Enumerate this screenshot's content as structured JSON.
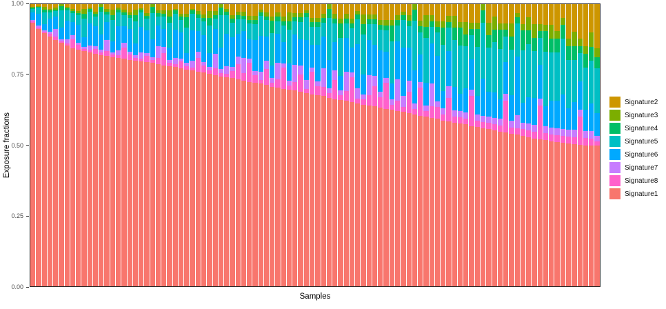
{
  "chart_data": {
    "type": "bar",
    "stacked": true,
    "title": "",
    "xlabel": "Samples",
    "ylabel": "Exposure fractions",
    "ylim": [
      0,
      1
    ],
    "grid": false,
    "x_tick_labels_shown": false,
    "yticks": [
      {
        "label": "0.00",
        "value": 0.0
      },
      {
        "label": "0.25",
        "value": 0.25
      },
      {
        "label": "0.50",
        "value": 0.5
      },
      {
        "label": "0.75",
        "value": 0.75
      },
      {
        "label": "1.00",
        "value": 1.0
      }
    ],
    "legend": {
      "position": "right",
      "entries": [
        {
          "label": "Signature2",
          "color": "#CD9600"
        },
        {
          "label": "Signature3",
          "color": "#7CAE00"
        },
        {
          "label": "Signature4",
          "color": "#00BE67"
        },
        {
          "label": "Signature5",
          "color": "#00BFC4"
        },
        {
          "label": "Signature6",
          "color": "#00A9FF"
        },
        {
          "label": "Signature7",
          "color": "#C77CFF"
        },
        {
          "label": "Signature8",
          "color": "#FF61CC"
        },
        {
          "label": "Signature1",
          "color": "#F8766D"
        }
      ]
    },
    "series_colors": {
      "Signature1": "#F8766D",
      "Signature2": "#CD9600",
      "Signature3": "#7CAE00",
      "Signature4": "#00BE67",
      "Signature5": "#00BFC4",
      "Signature6": "#00A9FF",
      "Signature7": "#C77CFF",
      "Signature8": "#FF61CC"
    },
    "stack_order_bottom_to_top": [
      "Signature1",
      "Signature8",
      "Signature7",
      "Signature6",
      "Signature5",
      "Signature4",
      "Signature3",
      "Signature2"
    ],
    "samples_sorted_by": "Signature1 fraction, descending (0.93 to 0.50)",
    "samples": [
      [
        0.932,
        0.007,
        0.003,
        0.027,
        0.014,
        0.003,
        0.003,
        0.01
      ],
      [
        0.912,
        0.004,
        0.009,
        0.04,
        0.022,
        0.004,
        0.003,
        0.006
      ],
      [
        0.896,
        0.005,
        0.005,
        0.021,
        0.042,
        0.01,
        0.01,
        0.01
      ],
      [
        0.884,
        0.012,
        0.006,
        0.046,
        0.023,
        0.006,
        0.006,
        0.017
      ],
      [
        0.872,
        0.013,
        0.026,
        0.045,
        0.019,
        0.006,
        0.006,
        0.013
      ],
      [
        0.862,
        0.007,
        0.007,
        0.041,
        0.062,
        0.014,
        0.007,
        0.0
      ],
      [
        0.853,
        0.007,
        0.015,
        0.066,
        0.037,
        0.007,
        0.004,
        0.01
      ],
      [
        0.845,
        0.031,
        0.016,
        0.047,
        0.031,
        0.008,
        0.008,
        0.016
      ],
      [
        0.838,
        0.016,
        0.008,
        0.065,
        0.032,
        0.008,
        0.008,
        0.024
      ],
      [
        0.833,
        0.008,
        0.008,
        0.033,
        0.067,
        0.017,
        0.017,
        0.017
      ],
      [
        0.828,
        0.009,
        0.017,
        0.077,
        0.043,
        0.009,
        0.005,
        0.012
      ],
      [
        0.824,
        0.018,
        0.009,
        0.07,
        0.035,
        0.009,
        0.009,
        0.026
      ],
      [
        0.82,
        0.009,
        0.009,
        0.054,
        0.081,
        0.018,
        0.009,
        0.0
      ],
      [
        0.816,
        0.018,
        0.037,
        0.064,
        0.028,
        0.009,
        0.009,
        0.018
      ],
      [
        0.812,
        0.009,
        0.009,
        0.038,
        0.075,
        0.019,
        0.019,
        0.019
      ],
      [
        0.809,
        0.01,
        0.019,
        0.086,
        0.048,
        0.01,
        0.006,
        0.013
      ],
      [
        0.806,
        0.039,
        0.019,
        0.058,
        0.039,
        0.01,
        0.01,
        0.019
      ],
      [
        0.803,
        0.02,
        0.01,
        0.079,
        0.039,
        0.01,
        0.01,
        0.03
      ],
      [
        0.8,
        0.01,
        0.01,
        0.04,
        0.08,
        0.02,
        0.02,
        0.02
      ],
      [
        0.797,
        0.01,
        0.02,
        0.091,
        0.051,
        0.01,
        0.006,
        0.014
      ],
      [
        0.794,
        0.021,
        0.01,
        0.082,
        0.041,
        0.01,
        0.01,
        0.031
      ],
      [
        0.791,
        0.01,
        0.01,
        0.063,
        0.094,
        0.021,
        0.01,
        0.0
      ],
      [
        0.788,
        0.021,
        0.042,
        0.074,
        0.032,
        0.011,
        0.011,
        0.021
      ],
      [
        0.785,
        0.043,
        0.022,
        0.065,
        0.043,
        0.011,
        0.011,
        0.022
      ],
      [
        0.781,
        0.011,
        0.011,
        0.044,
        0.088,
        0.022,
        0.022,
        0.022
      ],
      [
        0.777,
        0.011,
        0.022,
        0.1,
        0.056,
        0.011,
        0.007,
        0.016
      ],
      [
        0.773,
        0.023,
        0.011,
        0.091,
        0.045,
        0.011,
        0.011,
        0.034
      ],
      [
        0.769,
        0.012,
        0.012,
        0.035,
        0.092,
        0.035,
        0.012,
        0.035
      ],
      [
        0.765,
        0.012,
        0.024,
        0.106,
        0.059,
        0.012,
        0.007,
        0.016
      ],
      [
        0.761,
        0.048,
        0.024,
        0.072,
        0.048,
        0.012,
        0.012,
        0.024
      ],
      [
        0.757,
        0.024,
        0.012,
        0.097,
        0.049,
        0.012,
        0.012,
        0.036
      ],
      [
        0.753,
        0.012,
        0.012,
        0.049,
        0.099,
        0.025,
        0.025,
        0.025
      ],
      [
        0.749,
        0.025,
        0.05,
        0.088,
        0.038,
        0.013,
        0.013,
        0.025
      ],
      [
        0.745,
        0.013,
        0.013,
        0.077,
        0.115,
        0.026,
        0.013,
        0.0
      ],
      [
        0.741,
        0.013,
        0.026,
        0.117,
        0.065,
        0.013,
        0.008,
        0.018
      ],
      [
        0.737,
        0.026,
        0.013,
        0.105,
        0.053,
        0.013,
        0.013,
        0.039
      ],
      [
        0.733,
        0.053,
        0.027,
        0.08,
        0.053,
        0.013,
        0.013,
        0.027
      ],
      [
        0.729,
        0.027,
        0.054,
        0.095,
        0.041,
        0.014,
        0.014,
        0.027
      ],
      [
        0.725,
        0.069,
        0.014,
        0.069,
        0.055,
        0.014,
        0.014,
        0.041
      ],
      [
        0.721,
        0.028,
        0.014,
        0.112,
        0.056,
        0.014,
        0.014,
        0.042
      ],
      [
        0.717,
        0.014,
        0.028,
        0.127,
        0.071,
        0.014,
        0.008,
        0.02
      ],
      [
        0.713,
        0.057,
        0.029,
        0.086,
        0.057,
        0.014,
        0.014,
        0.029
      ],
      [
        0.709,
        0.015,
        0.015,
        0.044,
        0.116,
        0.044,
        0.015,
        0.044
      ],
      [
        0.705,
        0.03,
        0.059,
        0.103,
        0.044,
        0.015,
        0.015,
        0.03
      ],
      [
        0.701,
        0.075,
        0.015,
        0.075,
        0.06,
        0.015,
        0.015,
        0.045
      ],
      [
        0.697,
        0.015,
        0.015,
        0.061,
        0.121,
        0.03,
        0.03,
        0.03
      ],
      [
        0.693,
        0.031,
        0.061,
        0.107,
        0.046,
        0.015,
        0.015,
        0.031
      ],
      [
        0.689,
        0.062,
        0.031,
        0.093,
        0.062,
        0.016,
        0.016,
        0.031
      ],
      [
        0.685,
        0.016,
        0.032,
        0.142,
        0.079,
        0.016,
        0.009,
        0.022
      ],
      [
        0.681,
        0.08,
        0.016,
        0.08,
        0.064,
        0.016,
        0.016,
        0.048
      ],
      [
        0.677,
        0.032,
        0.016,
        0.129,
        0.065,
        0.016,
        0.016,
        0.048
      ],
      [
        0.673,
        0.033,
        0.065,
        0.114,
        0.049,
        0.016,
        0.016,
        0.033
      ],
      [
        0.669,
        0.017,
        0.017,
        0.099,
        0.149,
        0.033,
        0.017,
        0.0
      ],
      [
        0.665,
        0.067,
        0.034,
        0.101,
        0.067,
        0.017,
        0.017,
        0.034
      ],
      [
        0.661,
        0.017,
        0.017,
        0.051,
        0.136,
        0.051,
        0.017,
        0.051
      ],
      [
        0.657,
        0.034,
        0.069,
        0.12,
        0.051,
        0.017,
        0.017,
        0.034
      ],
      [
        0.653,
        0.087,
        0.017,
        0.087,
        0.069,
        0.017,
        0.017,
        0.052
      ],
      [
        0.649,
        0.018,
        0.035,
        0.158,
        0.088,
        0.018,
        0.011,
        0.025
      ],
      [
        0.645,
        0.018,
        0.018,
        0.071,
        0.142,
        0.036,
        0.036,
        0.036
      ],
      [
        0.641,
        0.036,
        0.072,
        0.126,
        0.054,
        0.018,
        0.018,
        0.036
      ],
      [
        0.637,
        0.073,
        0.036,
        0.109,
        0.073,
        0.018,
        0.018,
        0.036
      ],
      [
        0.633,
        0.037,
        0.018,
        0.147,
        0.073,
        0.018,
        0.018,
        0.055
      ],
      [
        0.629,
        0.093,
        0.019,
        0.093,
        0.074,
        0.019,
        0.019,
        0.056
      ],
      [
        0.625,
        0.019,
        0.019,
        0.056,
        0.15,
        0.056,
        0.019,
        0.056
      ],
      [
        0.621,
        0.038,
        0.076,
        0.133,
        0.057,
        0.019,
        0.019,
        0.038
      ],
      [
        0.617,
        0.019,
        0.038,
        0.172,
        0.096,
        0.019,
        0.011,
        0.027
      ],
      [
        0.613,
        0.077,
        0.039,
        0.116,
        0.077,
        0.019,
        0.019,
        0.039
      ],
      [
        0.609,
        0.02,
        0.02,
        0.117,
        0.176,
        0.039,
        0.02,
        0.0
      ],
      [
        0.605,
        0.099,
        0.02,
        0.099,
        0.079,
        0.02,
        0.02,
        0.059
      ],
      [
        0.601,
        0.02,
        0.02,
        0.08,
        0.16,
        0.04,
        0.04,
        0.04
      ],
      [
        0.597,
        0.04,
        0.081,
        0.141,
        0.06,
        0.02,
        0.02,
        0.04
      ],
      [
        0.593,
        0.041,
        0.02,
        0.163,
        0.081,
        0.02,
        0.02,
        0.061
      ],
      [
        0.589,
        0.021,
        0.021,
        0.062,
        0.164,
        0.062,
        0.021,
        0.062
      ],
      [
        0.585,
        0.083,
        0.042,
        0.125,
        0.083,
        0.021,
        0.021,
        0.042
      ],
      [
        0.581,
        0.021,
        0.021,
        0.084,
        0.168,
        0.042,
        0.042,
        0.042
      ],
      [
        0.577,
        0.021,
        0.021,
        0.063,
        0.169,
        0.063,
        0.021,
        0.063
      ],
      [
        0.573,
        0.021,
        0.021,
        0.085,
        0.149,
        0.043,
        0.043,
        0.064
      ],
      [
        0.569,
        0.108,
        0.022,
        0.108,
        0.086,
        0.022,
        0.022,
        0.065
      ],
      [
        0.565,
        0.022,
        0.022,
        0.065,
        0.174,
        0.065,
        0.022,
        0.065
      ],
      [
        0.561,
        0.022,
        0.022,
        0.132,
        0.198,
        0.044,
        0.022,
        0.0
      ],
      [
        0.557,
        0.022,
        0.022,
        0.089,
        0.155,
        0.044,
        0.044,
        0.066
      ],
      [
        0.553,
        0.022,
        0.022,
        0.089,
        0.179,
        0.045,
        0.045,
        0.045
      ],
      [
        0.549,
        0.023,
        0.023,
        0.068,
        0.18,
        0.068,
        0.023,
        0.068
      ],
      [
        0.545,
        0.114,
        0.023,
        0.114,
        0.091,
        0.023,
        0.023,
        0.068
      ],
      [
        0.541,
        0.023,
        0.023,
        0.092,
        0.161,
        0.046,
        0.046,
        0.069
      ],
      [
        0.537,
        0.023,
        0.046,
        0.208,
        0.116,
        0.023,
        0.014,
        0.032
      ],
      [
        0.533,
        0.023,
        0.023,
        0.07,
        0.187,
        0.07,
        0.023,
        0.07
      ],
      [
        0.529,
        0.024,
        0.024,
        0.094,
        0.188,
        0.047,
        0.047,
        0.047
      ],
      [
        0.525,
        0.024,
        0.024,
        0.095,
        0.166,
        0.048,
        0.048,
        0.071
      ],
      [
        0.521,
        0.12,
        0.024,
        0.12,
        0.096,
        0.024,
        0.024,
        0.072
      ],
      [
        0.517,
        0.024,
        0.024,
        0.072,
        0.193,
        0.072,
        0.024,
        0.072
      ],
      [
        0.513,
        0.024,
        0.024,
        0.097,
        0.17,
        0.049,
        0.049,
        0.073
      ],
      [
        0.51,
        0.025,
        0.025,
        0.098,
        0.172,
        0.049,
        0.025,
        0.096
      ],
      [
        0.508,
        0.025,
        0.025,
        0.123,
        0.197,
        0.049,
        0.025,
        0.048
      ],
      [
        0.506,
        0.025,
        0.025,
        0.074,
        0.173,
        0.049,
        0.025,
        0.123
      ],
      [
        0.504,
        0.025,
        0.025,
        0.099,
        0.149,
        0.05,
        0.05,
        0.098
      ],
      [
        0.502,
        0.1,
        0.025,
        0.1,
        0.1,
        0.025,
        0.025,
        0.123
      ],
      [
        0.5,
        0.025,
        0.025,
        0.075,
        0.15,
        0.05,
        0.025,
        0.15
      ],
      [
        0.499,
        0.025,
        0.025,
        0.1,
        0.15,
        0.05,
        0.05,
        0.101
      ],
      [
        0.498,
        0.015,
        0.02,
        0.08,
        0.16,
        0.04,
        0.03,
        0.157
      ]
    ]
  }
}
